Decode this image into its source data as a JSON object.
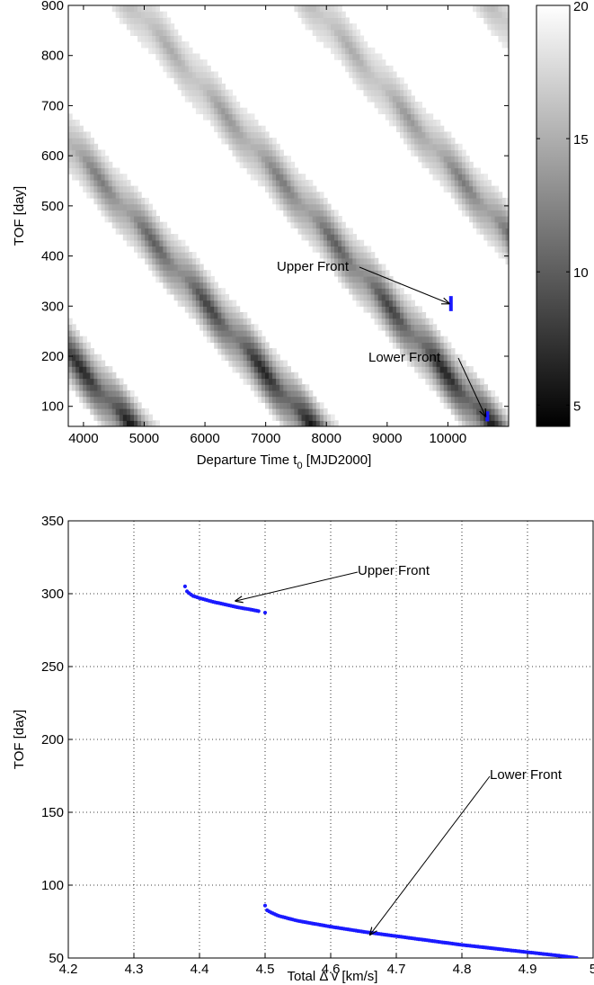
{
  "colors": {
    "data": "#1a1aff",
    "annotation_line": "#000000",
    "frame": "#000000"
  },
  "chart_data": [
    {
      "type": "heatmap",
      "title": "",
      "xlabel_main": "Departure Time t",
      "xlabel_sub": "0",
      "xlabel_units": " [MJD2000]",
      "ylabel": "TOF [day]",
      "xlim": [
        3750,
        11000
      ],
      "ylim": [
        60,
        900
      ],
      "xticks": [
        4000,
        5000,
        6000,
        7000,
        8000,
        9000,
        10000
      ],
      "yticks": [
        100,
        200,
        300,
        400,
        500,
        600,
        700,
        800,
        900
      ],
      "colorbar": {
        "range": [
          4.2,
          20
        ],
        "ticks": [
          5,
          10,
          15,
          20
        ],
        "colormap": "gray"
      },
      "structure": {
        "fronts_slope_days_per_day": -0.142,
        "dark_front_base_dates": [
          4700,
          7700,
          10650
        ]
      },
      "series": [
        {
          "name": "Upper Front",
          "x": [
            10050,
            10050
          ],
          "y": [
            290,
            320
          ]
        },
        {
          "name": "Lower Front",
          "x": [
            10650,
            10650
          ],
          "y": [
            70,
            90
          ]
        }
      ],
      "annotations": [
        {
          "text": "Upper Front",
          "arrow_to": [
            10050,
            305
          ]
        },
        {
          "text": "Lower Front",
          "arrow_to": [
            10650,
            80
          ]
        }
      ],
      "grid": false
    },
    {
      "type": "scatter",
      "title": "",
      "xlabel": "Total Δ v [km/s]",
      "ylabel": "TOF [day]",
      "xlim": [
        4.2,
        5.0
      ],
      "ylim": [
        50,
        350
      ],
      "xticks": [
        4.2,
        4.3,
        4.4,
        4.5,
        4.6,
        4.7,
        4.8,
        4.9,
        5
      ],
      "yticks": [
        50,
        100,
        150,
        200,
        250,
        300,
        350
      ],
      "grid": true,
      "series": [
        {
          "name": "Upper Front",
          "x": [
            4.378,
            4.38,
            4.385,
            4.39,
            4.4,
            4.42,
            4.44,
            4.46,
            4.48,
            4.49
          ],
          "y": [
            305,
            302,
            300,
            298.5,
            297,
            294.5,
            292.5,
            290.5,
            289,
            288
          ]
        },
        {
          "name": "Lower Front",
          "x": [
            4.5,
            4.502,
            4.51,
            4.52,
            4.55,
            4.6,
            4.65,
            4.7,
            4.75,
            4.8,
            4.85,
            4.9,
            4.95,
            4.975
          ],
          "y": [
            86,
            83,
            81,
            79,
            75.5,
            71.5,
            68,
            65,
            62,
            59,
            56.5,
            54,
            51.5,
            50
          ]
        }
      ],
      "outlier_point": {
        "x": 4.5,
        "y": 287
      },
      "annotations": [
        {
          "text": "Upper Front",
          "arrow_to": [
            4.455,
            295
          ]
        },
        {
          "text": "Lower Front",
          "arrow_to": [
            4.66,
            66
          ]
        }
      ]
    }
  ]
}
